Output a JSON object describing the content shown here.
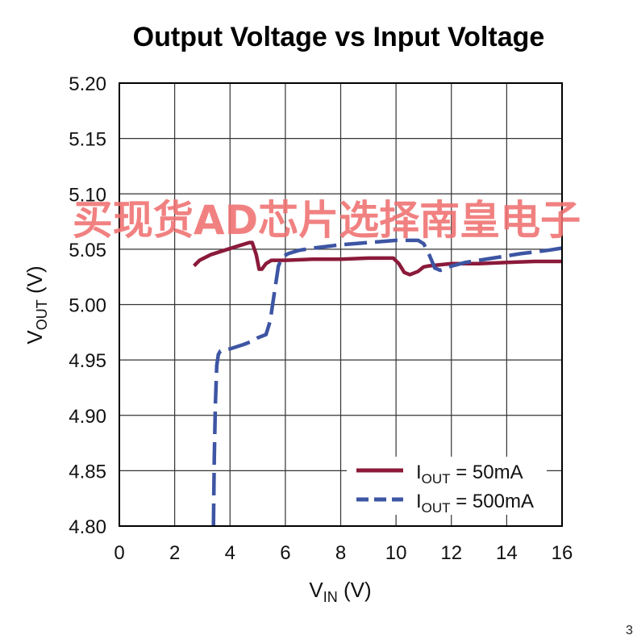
{
  "chart_data": {
    "type": "line",
    "title": "Output Voltage vs Input Voltage",
    "xlabel": {
      "main": "V",
      "sub": "IN",
      "unit": " (V)"
    },
    "ylabel": {
      "main": "V",
      "sub": "OUT",
      "unit": " (V)"
    },
    "xlim": [
      0,
      16
    ],
    "ylim": [
      4.8,
      5.2
    ],
    "xticks": [
      "0",
      "2",
      "4",
      "6",
      "8",
      "10",
      "12",
      "14",
      "16"
    ],
    "yticks": [
      "4.80",
      "4.85",
      "4.90",
      "4.95",
      "5.00",
      "5.05",
      "5.10",
      "5.15",
      "5.20"
    ],
    "grid": true,
    "legend_position": "bottom-right",
    "series": [
      {
        "name": "I_OUT = 50mA",
        "legend": {
          "main": "I",
          "sub": "OUT",
          "rest": " = 50mA"
        },
        "color": "#8b1a3a",
        "dash": "solid",
        "x": [
          2.7,
          2.9,
          3.3,
          3.8,
          4.3,
          4.7,
          4.8,
          4.95,
          5.05,
          5.15,
          5.3,
          5.5,
          6.0,
          7.0,
          8.0,
          9.0,
          9.9,
          10.1,
          10.3,
          10.5,
          10.8,
          11.0,
          11.2,
          11.6,
          12.0,
          13.0,
          14.0,
          15.0,
          16.0
        ],
        "y": [
          5.035,
          5.04,
          5.045,
          5.049,
          5.053,
          5.056,
          5.056,
          5.045,
          5.032,
          5.032,
          5.037,
          5.04,
          5.04,
          5.041,
          5.041,
          5.042,
          5.042,
          5.037,
          5.029,
          5.027,
          5.03,
          5.034,
          5.035,
          5.036,
          5.037,
          5.037,
          5.038,
          5.039,
          5.039
        ]
      },
      {
        "name": "I_OUT = 500mA",
        "legend": {
          "main": "I",
          "sub": "OUT",
          "rest": " = 500mA"
        },
        "color": "#3d55a3",
        "dash": "dashed",
        "x": [
          3.4,
          3.43,
          3.47,
          3.52,
          3.58,
          3.65,
          4.0,
          4.5,
          4.8,
          5.0,
          5.3,
          5.45,
          5.6,
          5.75,
          5.9,
          6.1,
          6.5,
          7.0,
          8.0,
          9.0,
          10.0,
          10.8,
          11.0,
          11.2,
          11.4,
          11.6,
          11.9,
          12.5,
          13.5,
          14.5,
          15.5,
          16.0
        ],
        "y": [
          4.8,
          4.86,
          4.91,
          4.945,
          4.955,
          4.958,
          4.96,
          4.964,
          4.967,
          4.97,
          4.973,
          4.985,
          5.01,
          5.035,
          5.043,
          5.046,
          5.049,
          5.051,
          5.054,
          5.056,
          5.058,
          5.058,
          5.055,
          5.045,
          5.033,
          5.031,
          5.034,
          5.038,
          5.042,
          5.046,
          5.049,
          5.051
        ]
      }
    ],
    "watermark": "买现货AD芯片选择南皇电子",
    "corner_text": "3"
  }
}
